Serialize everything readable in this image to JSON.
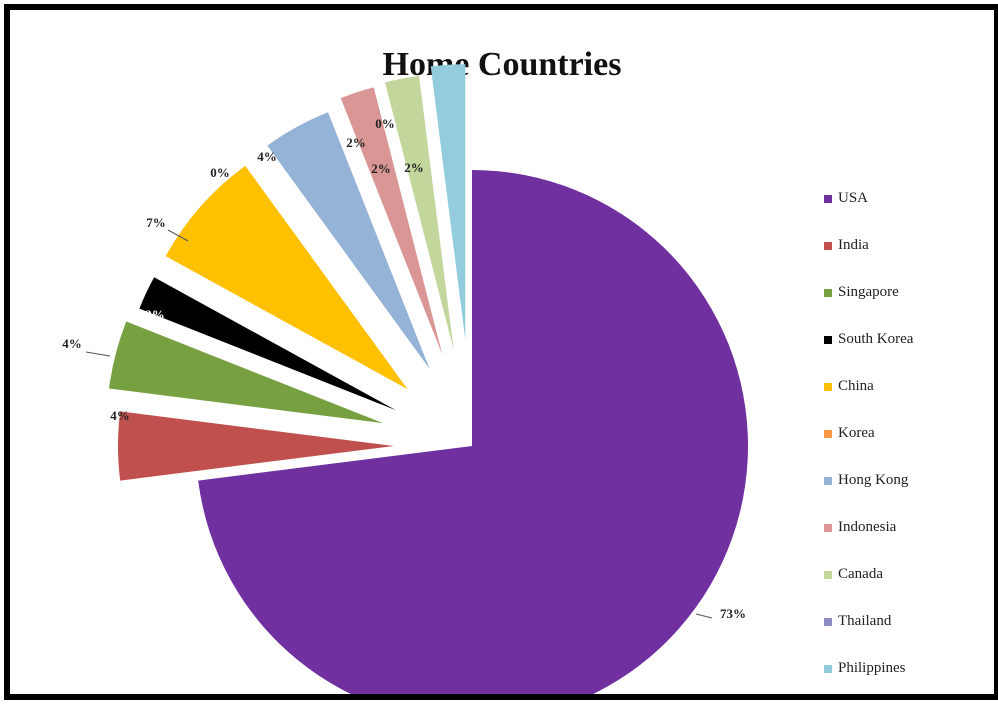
{
  "chart_data": {
    "type": "pie",
    "title": "Home Countries",
    "legend_position": "right",
    "slices": [
      {
        "name": "USA",
        "value": 73,
        "label": "73%",
        "color": "#7030A0"
      },
      {
        "name": "India",
        "value": 4,
        "label": "4%",
        "color": "#C0504D"
      },
      {
        "name": "Singapore",
        "value": 4,
        "label": "4%",
        "color": "#77A040"
      },
      {
        "name": "South Korea",
        "value": 2,
        "label": "2%",
        "color": "#000000"
      },
      {
        "name": "China",
        "value": 7,
        "label": "7%",
        "color": "#FFC000"
      },
      {
        "name": "Korea",
        "value": 0,
        "label": "0%",
        "color": "#F79646"
      },
      {
        "name": "Hong Kong",
        "value": 4,
        "label": "4%",
        "color": "#95B3D7"
      },
      {
        "name": "Indonesia",
        "value": 2,
        "label": "2%",
        "color": "#D99694"
      },
      {
        "name": "Canada",
        "value": 2,
        "label": "2%",
        "color": "#C3D69B"
      },
      {
        "name": "Thailand",
        "value": 0,
        "label": "0%",
        "color": "#8E8CC4"
      },
      {
        "name": "Philippines",
        "value": 2,
        "label": "2%",
        "color": "#93CDDD"
      }
    ]
  }
}
